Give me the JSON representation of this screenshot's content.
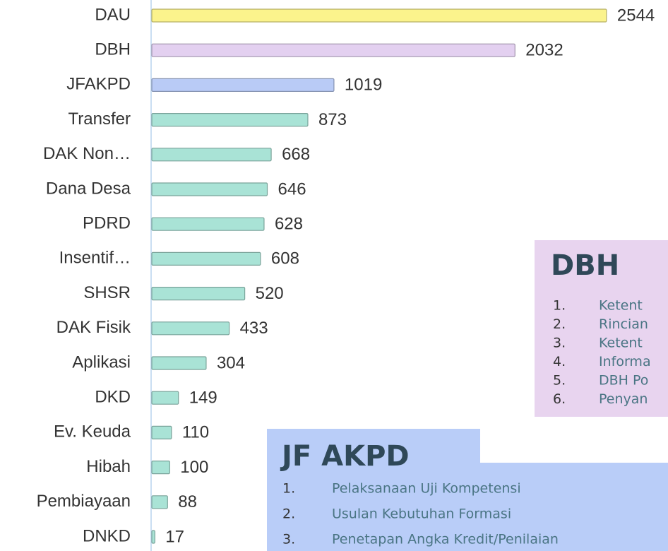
{
  "chart_data": {
    "type": "bar",
    "orientation": "horizontal",
    "categories": [
      "DAU",
      "DBH",
      "JFAKPD",
      "Transfer",
      "DAK Non…",
      "Dana Desa",
      "PDRD",
      "Insentif…",
      "SHSR",
      "DAK Fisik",
      "Aplikasi",
      "DKD",
      "Ev. Keuda",
      "Hibah",
      "Pembiayaan",
      "DNKD"
    ],
    "values": [
      2544,
      2032,
      1019,
      873,
      668,
      646,
      628,
      608,
      520,
      433,
      304,
      149,
      110,
      100,
      88,
      17
    ],
    "colors": [
      "#fbf38c",
      "#e3d0f0",
      "#b9cbf6",
      "#a9e3d6",
      "#a9e3d6",
      "#a9e3d6",
      "#a9e3d6",
      "#a9e3d6",
      "#a9e3d6",
      "#a9e3d6",
      "#a9e3d6",
      "#a9e3d6",
      "#a9e3d6",
      "#a9e3d6",
      "#a9e3d6",
      "#a9e3d6"
    ]
  },
  "panels": [
    {
      "title": "DBH",
      "color": "#e8d4ef",
      "items": [
        {
          "num": "1.",
          "text": "Ketent"
        },
        {
          "num": "2.",
          "text": "Rincian"
        },
        {
          "num": "3.",
          "text": "Ketent"
        },
        {
          "num": "4.",
          "text": "Informa"
        },
        {
          "num": "5.",
          "text": "DBH Po"
        },
        {
          "num": "6.",
          "text": "Penyan"
        }
      ]
    },
    {
      "title": "JF AKPD",
      "color": "#b9cdf8",
      "items": [
        {
          "num": "1.",
          "text": "Pelaksanaan Uji Kompetensi"
        },
        {
          "num": "2.",
          "text": "Usulan Kebutuhan Formasi"
        },
        {
          "num": "3.",
          "text": "Penetapan Angka Kredit/Penilaian"
        }
      ]
    }
  ]
}
